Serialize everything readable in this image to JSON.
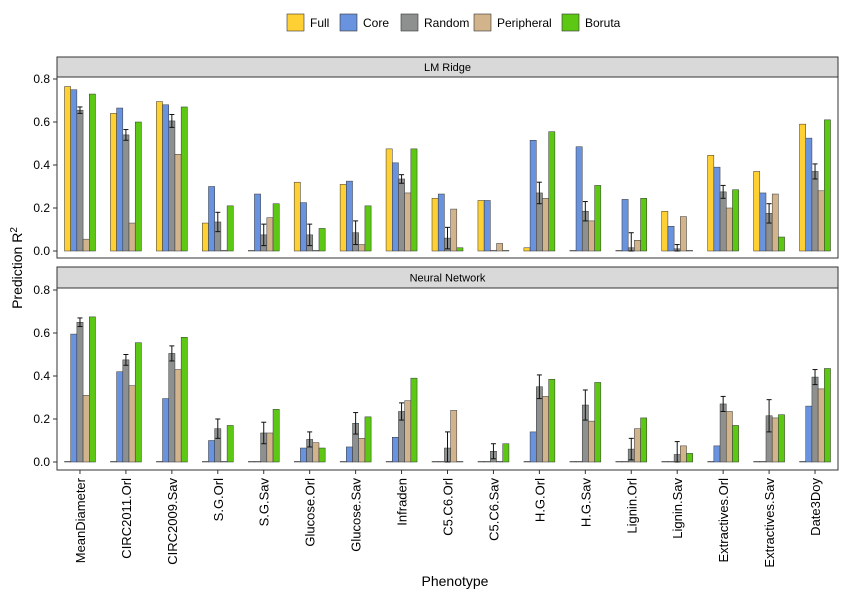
{
  "chart_data": {
    "type": "bar",
    "ylabel": "Prediction R",
    "ylabel_superscript": "2",
    "xlabel": "Phenotype",
    "ylim": [
      0,
      0.8
    ],
    "yticks": [
      "0.0",
      "0.2",
      "0.4",
      "0.6",
      "0.8"
    ],
    "legend_position": "top",
    "categories": [
      "MeanDiameter",
      "CIRC2011.Orl",
      "CIRC2009.Sav",
      "S.G.Orl",
      "S.G.Sav",
      "Glucose.Orl",
      "Glucose.Sav",
      "Infraden",
      "C5.C6.Orl",
      "C5.C6.Sav",
      "H.G.Orl",
      "H.G.Sav",
      "Lignin.Orl",
      "Lignin.Sav",
      "Extractives.Orl",
      "Extractives.Sav",
      "Date3Doy"
    ],
    "series": [
      {
        "name": "Full",
        "color": "#FFD033"
      },
      {
        "name": "Core",
        "color": "#6A93DF"
      },
      {
        "name": "Random",
        "color": "#8E9090"
      },
      {
        "name": "Peripheral",
        "color": "#D2B48C"
      },
      {
        "name": "Boruta",
        "color": "#5DC814"
      }
    ],
    "panels": [
      {
        "title": "LM Ridge",
        "values": {
          "Full": [
            0.765,
            0.64,
            0.695,
            0.13,
            0.0,
            0.32,
            0.31,
            0.475,
            0.245,
            0.235,
            0.015,
            0.0,
            0.0,
            0.185,
            0.445,
            0.37,
            0.59
          ],
          "Core": [
            0.75,
            0.665,
            0.68,
            0.3,
            0.265,
            0.225,
            0.325,
            0.41,
            0.265,
            0.235,
            0.515,
            0.485,
            0.24,
            0.115,
            0.39,
            0.27,
            0.525
          ],
          "Random": [
            0.655,
            0.54,
            0.605,
            0.135,
            0.075,
            0.075,
            0.085,
            0.335,
            0.06,
            0.0,
            0.27,
            0.185,
            0.015,
            0.01,
            0.275,
            0.175,
            0.37
          ],
          "Peripheral": [
            0.055,
            0.13,
            0.45,
            0.0,
            0.155,
            0.0,
            0.03,
            0.27,
            0.195,
            0.035,
            0.245,
            0.14,
            0.05,
            0.16,
            0.2,
            0.265,
            0.28
          ],
          "Boruta": [
            0.73,
            0.6,
            0.67,
            0.21,
            0.22,
            0.105,
            0.21,
            0.475,
            0.015,
            0.0,
            0.555,
            0.305,
            0.245,
            0.0,
            0.285,
            0.065,
            0.61
          ]
        },
        "random_error": [
          0.015,
          0.025,
          0.03,
          0.045,
          0.05,
          0.05,
          0.055,
          0.02,
          0.05,
          0.0,
          0.05,
          0.045,
          0.07,
          0.02,
          0.03,
          0.045,
          0.035
        ]
      },
      {
        "title": "Neural Network",
        "values": {
          "Full": [
            0.0,
            0.0,
            0.0,
            0.0,
            0.0,
            0.0,
            0.0,
            0.0,
            0.0,
            0.0,
            0.0,
            0.0,
            0.0,
            0.0,
            0.0,
            0.0,
            0.0
          ],
          "Core": [
            0.595,
            0.42,
            0.295,
            0.1,
            0.0,
            0.065,
            0.07,
            0.115,
            0.0,
            0.0,
            0.14,
            0.0,
            0.0,
            0.0,
            0.075,
            0.0,
            0.26
          ],
          "Random": [
            0.65,
            0.475,
            0.505,
            0.155,
            0.135,
            0.105,
            0.18,
            0.235,
            0.065,
            0.05,
            0.35,
            0.265,
            0.06,
            0.035,
            0.27,
            0.215,
            0.395
          ],
          "Peripheral": [
            0.31,
            0.355,
            0.43,
            0.0,
            0.135,
            0.09,
            0.11,
            0.285,
            0.24,
            0.0,
            0.305,
            0.19,
            0.155,
            0.075,
            0.235,
            0.205,
            0.34
          ],
          "Boruta": [
            0.675,
            0.555,
            0.58,
            0.17,
            0.245,
            0.065,
            0.21,
            0.39,
            0.0,
            0.085,
            0.385,
            0.37,
            0.205,
            0.04,
            0.17,
            0.22,
            0.435
          ]
        },
        "random_error": [
          0.02,
          0.025,
          0.035,
          0.045,
          0.05,
          0.035,
          0.05,
          0.04,
          0.075,
          0.035,
          0.055,
          0.07,
          0.05,
          0.06,
          0.035,
          0.075,
          0.035
        ]
      }
    ]
  }
}
